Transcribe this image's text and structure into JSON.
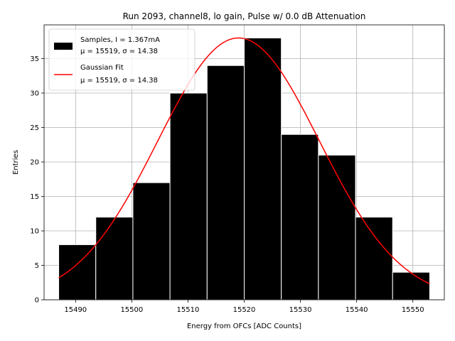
{
  "chart_data": {
    "type": "bar",
    "title": "Run 2093, channel8, lo gain, Pulse w/ 0.0 dB Attenuation",
    "xlabel": "Energy from OFCs [ADC Counts]",
    "ylabel": "Entries",
    "xlim": [
      15484.4,
      15555.6
    ],
    "ylim": [
      0,
      39.9
    ],
    "xticks": [
      15490,
      15500,
      15510,
      15520,
      15530,
      15540,
      15550
    ],
    "yticks": [
      0,
      5,
      10,
      15,
      20,
      25,
      30,
      35
    ],
    "grid": true,
    "legend_position": "top-left",
    "bins": [
      {
        "x0": 15487.0,
        "x1": 15493.6,
        "count": 8
      },
      {
        "x0": 15493.6,
        "x1": 15500.2,
        "count": 12
      },
      {
        "x0": 15500.2,
        "x1": 15506.8,
        "count": 17
      },
      {
        "x0": 15506.8,
        "x1": 15513.4,
        "count": 30
      },
      {
        "x0": 15513.4,
        "x1": 15520.0,
        "count": 34
      },
      {
        "x0": 15520.0,
        "x1": 15526.6,
        "count": 38
      },
      {
        "x0": 15526.6,
        "x1": 15533.2,
        "count": 24
      },
      {
        "x0": 15533.2,
        "x1": 15539.8,
        "count": 21
      },
      {
        "x0": 15539.8,
        "x1": 15546.4,
        "count": 12
      },
      {
        "x0": 15546.4,
        "x1": 15553.0,
        "count": 4
      }
    ],
    "fit": {
      "mu": 15519,
      "sigma": 14.38,
      "amplitude": 38,
      "x_range": [
        15487,
        15553
      ]
    },
    "series": [
      {
        "name": "Samples, I = 1.367mA",
        "sub": "μ = 15519, σ = 14.38",
        "color": "#000000",
        "kind": "histogram"
      },
      {
        "name": "Gaussian Fit",
        "sub": "μ = 15519, σ = 14.38",
        "color": "#ff0000",
        "kind": "line"
      }
    ]
  }
}
